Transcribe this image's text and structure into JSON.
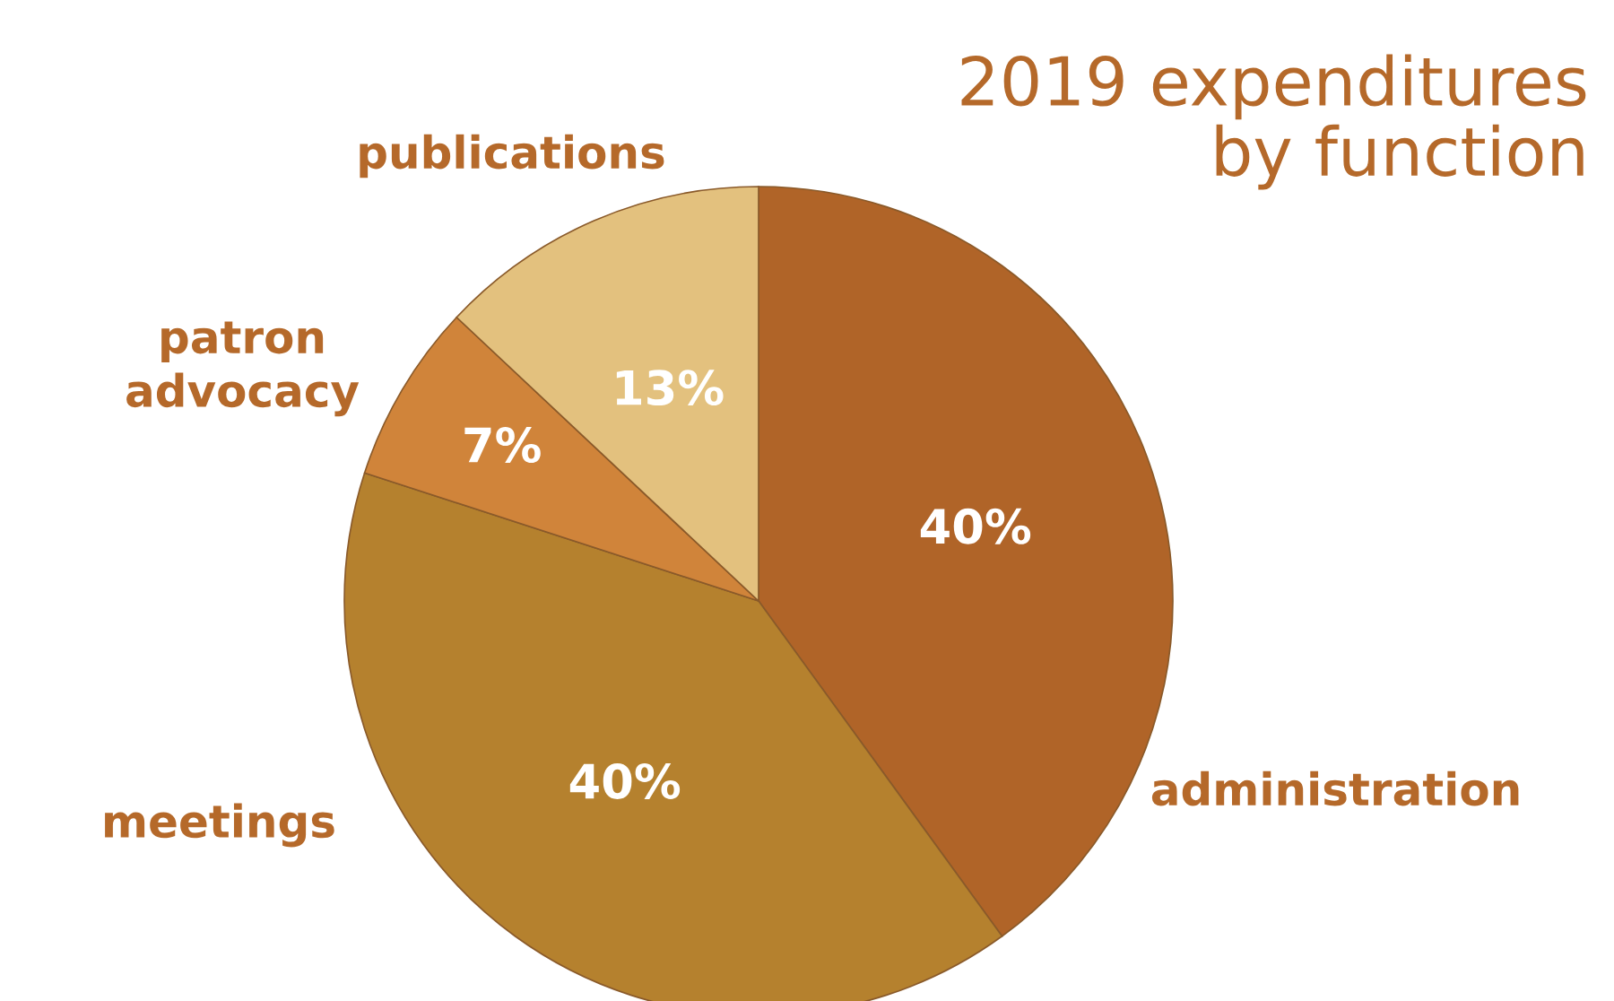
{
  "chart_data": {
    "type": "pie",
    "title": "2019 expenditures\nby function",
    "categories": [
      "administration",
      "meetings",
      "patron\nadvocacy",
      "publications"
    ],
    "values": [
      40,
      40,
      7,
      13
    ],
    "colors": [
      "#b06428",
      "#b5812e",
      "#d0843a",
      "#e3c17e"
    ],
    "value_labels": [
      "40%",
      "40%",
      "7%",
      "13%"
    ]
  }
}
